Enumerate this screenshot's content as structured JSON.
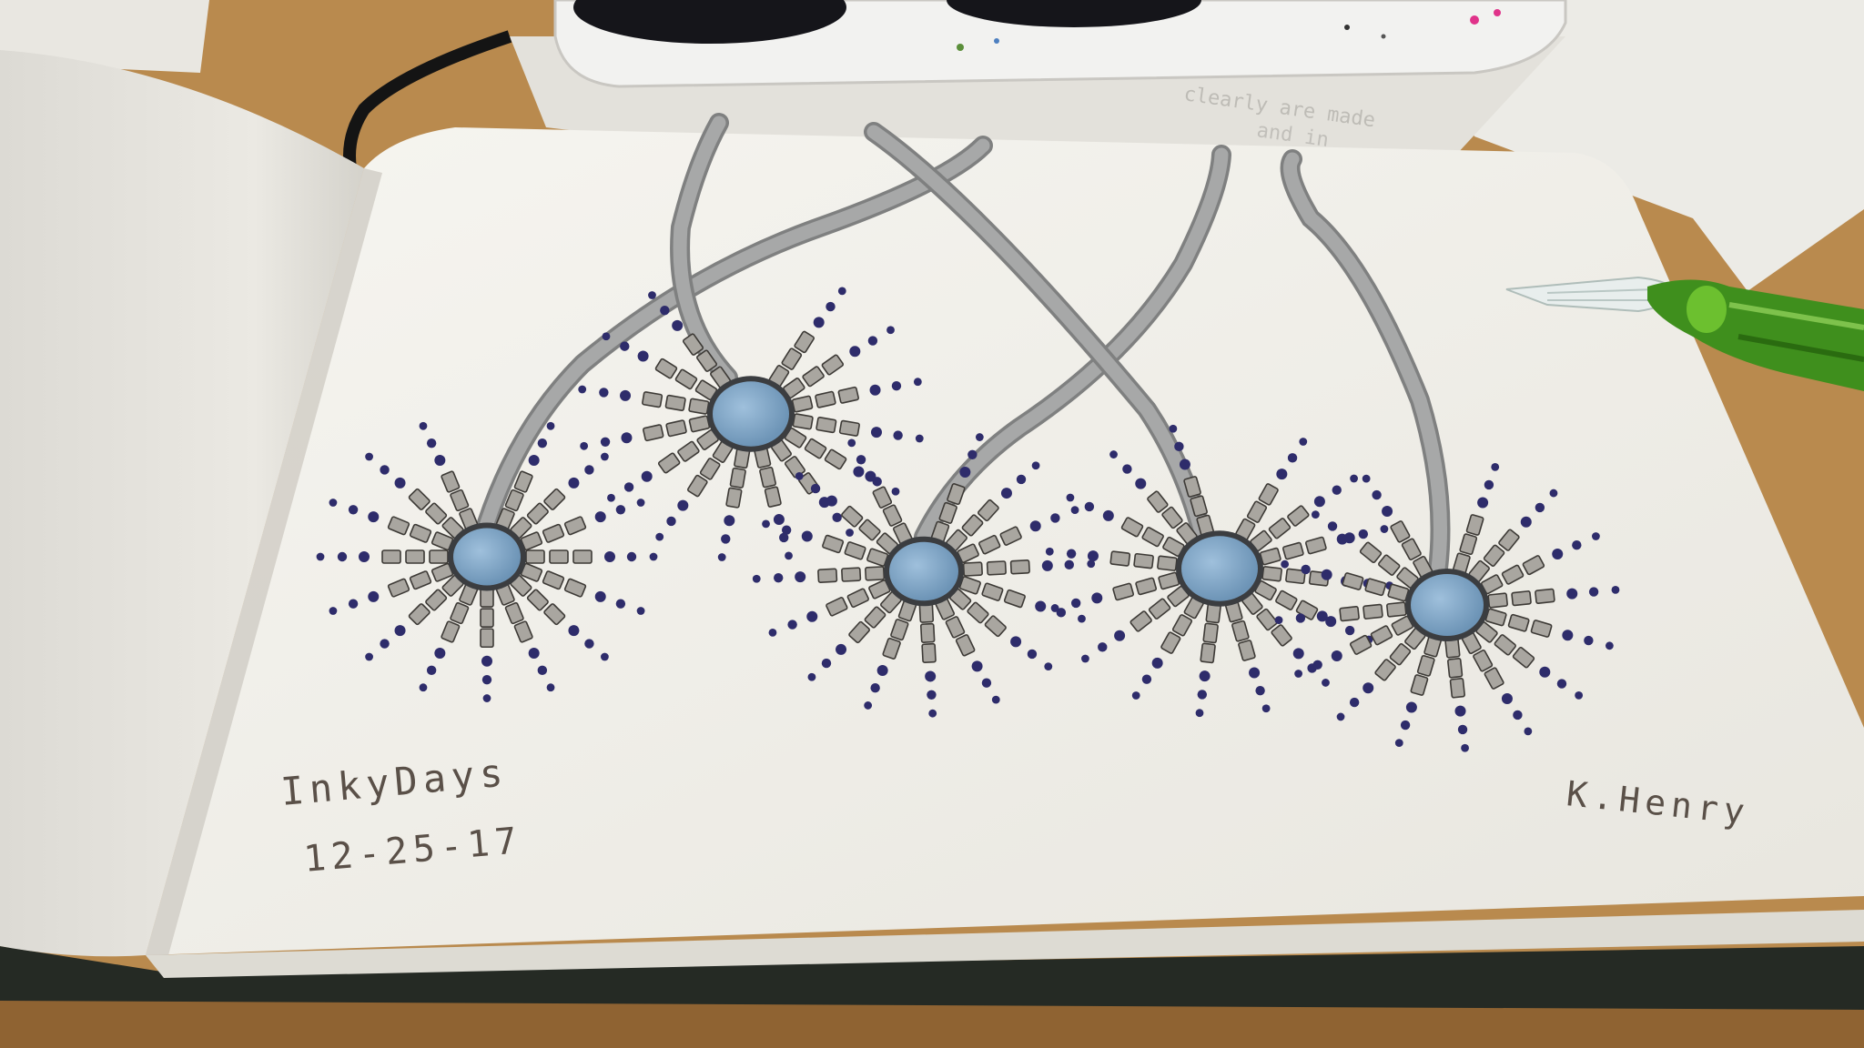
{
  "notebook": {
    "title_text": "InkyDays",
    "date_text": "12-25-17",
    "signature_text": "K.Henry"
  },
  "scene": {
    "desk_color": "#b98a4e",
    "page_color": "#f1f0ea",
    "stem_color": "#a7a8a8",
    "body_color": "#7fa6c6",
    "dash_color": "#a9a6a0",
    "dot_color": "#2e2c6b",
    "pen_glass_color": "#3f8f1d",
    "tray_color": "#f2f2f0"
  },
  "drawing": {
    "neuron_count": 5,
    "neurons": [
      {
        "id": "neuron-1"
      },
      {
        "id": "neuron-2"
      },
      {
        "id": "neuron-3"
      },
      {
        "id": "neuron-4"
      },
      {
        "id": "neuron-5"
      }
    ]
  }
}
